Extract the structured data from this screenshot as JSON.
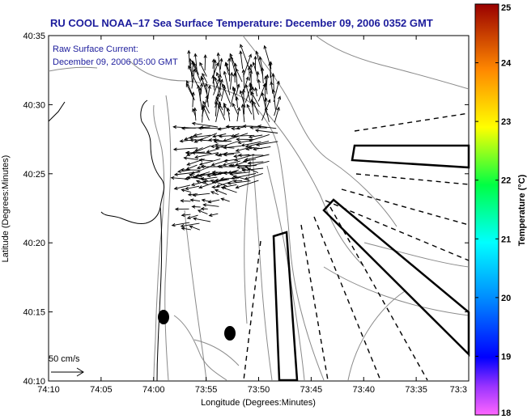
{
  "title": "RU COOL  NOAA–17  Sea Surface Temperature:  December 09, 2006 0352 GMT",
  "annotation": {
    "line1": "Raw Surface Current:",
    "line2": "December 09, 2006 05:00 GMT"
  },
  "axes": {
    "xlabel": "Longitude (Degrees:Minutes)",
    "ylabel": "Latitude (Degrees:Minutes)",
    "x_ticks": [
      "74:10",
      "74:05",
      "74:00",
      "73:55",
      "73:50",
      "73:45",
      "73:40",
      "73:35",
      "73:3"
    ],
    "y_ticks": [
      "40:35",
      "40:30",
      "40:25",
      "40:20",
      "40:15",
      "40:10"
    ]
  },
  "scale_vector": {
    "label": "50 cm/s"
  },
  "colorbar": {
    "label": "Temperature (°C)",
    "ticks": [
      "25",
      "24",
      "23",
      "22",
      "21",
      "20",
      "19",
      "18"
    ],
    "range": [
      18,
      25
    ]
  },
  "colors": {
    "title": "#1c1c9c",
    "annotation": "#1c1c9c",
    "contour": "#8a8a8a",
    "coast": "#000000",
    "vectors": "#000000"
  }
}
